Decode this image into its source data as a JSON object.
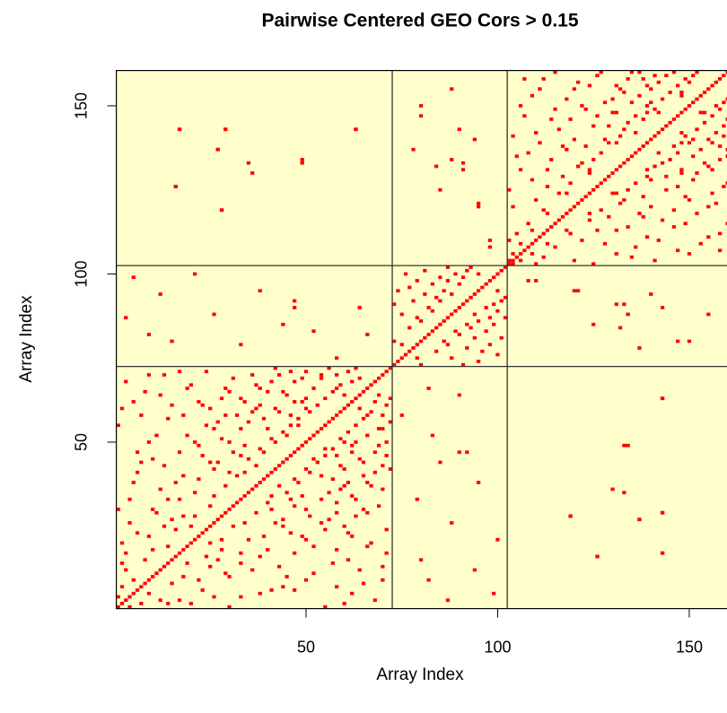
{
  "chart_data": {
    "type": "heatmap",
    "title": "Pairwise Centered GEO Cors > 0.15",
    "xlabel": "Array Index",
    "ylabel": "Array Index",
    "xlim": [
      0.5,
      160.5
    ],
    "ylim": [
      0.5,
      160.5
    ],
    "xticks": [
      50,
      100,
      150
    ],
    "yticks": [
      50,
      100,
      150
    ],
    "background": "#ffffcc",
    "color": "#ff0000",
    "symmetric": true,
    "diagonal": true,
    "blocks": [
      72.5,
      102.5
    ],
    "points": [
      [
        3,
        12
      ],
      [
        5,
        9
      ],
      [
        2,
        20
      ],
      [
        4,
        33
      ],
      [
        6,
        41
      ],
      [
        1,
        55
      ],
      [
        2,
        60
      ],
      [
        3,
        68
      ],
      [
        8,
        15
      ],
      [
        9,
        22
      ],
      [
        10,
        30
      ],
      [
        7,
        44
      ],
      [
        11,
        52
      ],
      [
        12,
        64
      ],
      [
        13,
        70
      ],
      [
        14,
        19
      ],
      [
        15,
        27
      ],
      [
        16,
        38
      ],
      [
        17,
        47
      ],
      [
        18,
        58
      ],
      [
        19,
        66
      ],
      [
        20,
        25
      ],
      [
        21,
        35
      ],
      [
        22,
        49
      ],
      [
        23,
        61
      ],
      [
        24,
        71
      ],
      [
        25,
        31
      ],
      [
        26,
        42
      ],
      [
        27,
        56
      ],
      [
        28,
        63
      ],
      [
        29,
        37
      ],
      [
        30,
        50
      ],
      [
        31,
        69
      ],
      [
        32,
        40
      ],
      [
        33,
        54
      ],
      [
        34,
        62
      ],
      [
        35,
        45
      ],
      [
        36,
        59
      ],
      [
        37,
        67
      ],
      [
        38,
        48
      ],
      [
        39,
        57
      ],
      [
        40,
        65
      ],
      [
        41,
        51
      ],
      [
        42,
        60
      ],
      [
        43,
        70
      ],
      [
        44,
        53
      ],
      [
        45,
        64
      ],
      [
        46,
        58
      ],
      [
        47,
        68
      ],
      [
        48,
        55
      ],
      [
        49,
        62
      ],
      [
        50,
        71
      ],
      [
        51,
        59
      ],
      [
        52,
        66
      ],
      [
        53,
        61
      ],
      [
        54,
        69
      ],
      [
        55,
        63
      ],
      [
        56,
        72
      ],
      [
        57,
        65
      ],
      [
        58,
        70
      ],
      [
        59,
        67
      ],
      [
        60,
        64
      ],
      [
        61,
        71
      ],
      [
        62,
        68
      ],
      [
        63,
        72
      ],
      [
        64,
        69
      ],
      [
        1,
        4
      ],
      [
        2,
        7
      ],
      [
        3,
        17
      ],
      [
        4,
        26
      ],
      [
        5,
        38
      ],
      [
        6,
        47
      ],
      [
        7,
        58
      ],
      [
        8,
        65
      ],
      [
        9,
        70
      ],
      [
        10,
        18
      ],
      [
        11,
        29
      ],
      [
        12,
        36
      ],
      [
        13,
        43
      ],
      [
        14,
        57
      ],
      [
        15,
        61
      ],
      [
        16,
        24
      ],
      [
        17,
        33
      ],
      [
        18,
        40
      ],
      [
        19,
        52
      ],
      [
        20,
        67
      ],
      [
        21,
        28
      ],
      [
        22,
        39
      ],
      [
        23,
        46
      ],
      [
        24,
        55
      ],
      [
        25,
        60
      ],
      [
        26,
        34
      ],
      [
        27,
        44
      ],
      [
        28,
        51
      ],
      [
        29,
        66
      ],
      [
        30,
        41
      ],
      [
        31,
        47
      ],
      [
        32,
        58
      ],
      [
        33,
        63
      ],
      [
        34,
        49
      ],
      [
        35,
        56
      ],
      [
        36,
        70
      ],
      [
        37,
        43
      ],
      [
        38,
        61
      ],
      [
        39,
        47
      ],
      [
        40,
        54
      ],
      [
        41,
        68
      ],
      [
        42,
        50
      ],
      [
        43,
        59
      ],
      [
        44,
        65
      ],
      [
        45,
        52
      ],
      [
        46,
        71
      ],
      [
        47,
        62
      ],
      [
        48,
        57
      ],
      [
        49,
        69
      ],
      [
        50,
        60
      ],
      [
        2,
        14
      ],
      [
        6,
        23
      ],
      [
        10,
        45
      ],
      [
        14,
        33
      ],
      [
        18,
        28
      ],
      [
        22,
        62
      ],
      [
        26,
        54
      ],
      [
        30,
        65
      ],
      [
        34,
        41
      ],
      [
        38,
        66
      ],
      [
        42,
        72
      ],
      [
        46,
        55
      ],
      [
        50,
        63
      ],
      [
        54,
        70
      ],
      [
        58,
        66
      ],
      [
        1,
        30
      ],
      [
        5,
        62
      ],
      [
        9,
        50
      ],
      [
        13,
        25
      ],
      [
        17,
        71
      ],
      [
        21,
        50
      ],
      [
        25,
        44
      ],
      [
        29,
        58
      ],
      [
        33,
        46
      ],
      [
        37,
        60
      ],
      [
        73,
        80
      ],
      [
        74,
        95
      ],
      [
        75,
        88
      ],
      [
        76,
        100
      ],
      [
        77,
        84
      ],
      [
        78,
        92
      ],
      [
        79,
        98
      ],
      [
        80,
        86
      ],
      [
        81,
        101
      ],
      [
        82,
        90
      ],
      [
        83,
        97
      ],
      [
        84,
        93
      ],
      [
        85,
        99
      ],
      [
        86,
        95
      ],
      [
        87,
        102
      ],
      [
        88,
        94
      ],
      [
        89,
        100
      ],
      [
        90,
        97
      ],
      [
        91,
        99
      ],
      [
        92,
        101
      ],
      [
        73,
        91
      ],
      [
        75,
        79
      ],
      [
        77,
        96
      ],
      [
        79,
        87
      ],
      [
        81,
        94
      ],
      [
        83,
        89
      ],
      [
        85,
        92
      ],
      [
        87,
        98
      ],
      [
        93,
        102
      ],
      [
        95,
        100
      ],
      [
        103,
        110
      ],
      [
        104,
        120
      ],
      [
        105,
        135
      ],
      [
        106,
        150
      ],
      [
        107,
        158
      ],
      [
        108,
        115
      ],
      [
        109,
        128
      ],
      [
        110,
        142
      ],
      [
        111,
        155
      ],
      [
        112,
        119
      ],
      [
        113,
        131
      ],
      [
        114,
        146
      ],
      [
        115,
        160
      ],
      [
        116,
        124
      ],
      [
        117,
        138
      ],
      [
        118,
        152
      ],
      [
        119,
        127
      ],
      [
        120,
        140
      ],
      [
        121,
        157
      ],
      [
        122,
        133
      ],
      [
        123,
        149
      ],
      [
        124,
        130
      ],
      [
        125,
        144
      ],
      [
        126,
        159
      ],
      [
        127,
        136
      ],
      [
        128,
        151
      ],
      [
        129,
        139
      ],
      [
        130,
        148
      ],
      [
        131,
        156
      ],
      [
        132,
        141
      ],
      [
        133,
        154
      ],
      [
        134,
        145
      ],
      [
        135,
        160
      ],
      [
        136,
        147
      ],
      [
        137,
        153
      ],
      [
        138,
        158
      ],
      [
        139,
        150
      ],
      [
        140,
        155
      ],
      [
        141,
        149
      ],
      [
        142,
        157
      ],
      [
        143,
        152
      ],
      [
        144,
        159
      ],
      [
        145,
        154
      ],
      [
        146,
        160
      ],
      [
        147,
        156
      ],
      [
        148,
        153
      ],
      [
        149,
        158
      ],
      [
        150,
        157
      ],
      [
        151,
        159
      ],
      [
        152,
        160
      ],
      [
        103,
        125
      ],
      [
        104,
        141
      ],
      [
        105,
        112
      ],
      [
        106,
        131
      ],
      [
        107,
        147
      ],
      [
        108,
        136
      ],
      [
        109,
        153
      ],
      [
        110,
        122
      ],
      [
        111,
        139
      ],
      [
        112,
        158
      ],
      [
        113,
        126
      ],
      [
        114,
        134
      ],
      [
        115,
        149
      ],
      [
        116,
        143
      ],
      [
        117,
        129
      ],
      [
        118,
        137
      ],
      [
        119,
        146
      ],
      [
        120,
        155
      ],
      [
        121,
        132
      ],
      [
        122,
        150
      ],
      [
        123,
        138
      ],
      [
        124,
        156
      ],
      [
        125,
        134
      ],
      [
        126,
        147
      ],
      [
        127,
        160
      ],
      [
        128,
        140
      ],
      [
        129,
        144
      ],
      [
        130,
        152
      ],
      [
        131,
        148
      ],
      [
        132,
        155
      ],
      [
        133,
        143
      ],
      [
        134,
        158
      ],
      [
        135,
        151
      ],
      [
        136,
        142
      ],
      [
        137,
        160
      ],
      [
        138,
        146
      ],
      [
        139,
        156
      ],
      [
        140,
        151
      ],
      [
        141,
        159
      ],
      [
        142,
        148
      ],
      [
        103,
        104
      ],
      [
        104,
        106
      ],
      [
        106,
        109
      ],
      [
        109,
        113
      ],
      [
        113,
        118
      ],
      [
        118,
        124
      ],
      [
        124,
        131
      ],
      [
        131,
        139
      ],
      [
        139,
        148
      ],
      [
        148,
        154
      ],
      [
        17,
        143
      ],
      [
        29,
        143
      ],
      [
        27,
        137
      ],
      [
        35,
        133
      ],
      [
        49,
        134
      ],
      [
        63,
        143
      ],
      [
        16,
        126
      ],
      [
        28,
        119
      ],
      [
        80,
        150
      ],
      [
        84,
        132
      ],
      [
        88,
        134
      ],
      [
        90,
        143
      ],
      [
        91,
        131
      ],
      [
        95,
        121
      ],
      [
        98,
        110
      ],
      [
        78,
        137
      ],
      [
        3,
        87
      ],
      [
        9,
        82
      ],
      [
        12,
        94
      ],
      [
        26,
        88
      ],
      [
        33,
        79
      ],
      [
        47,
        92
      ],
      [
        52,
        83
      ],
      [
        64,
        90
      ],
      [
        5,
        99
      ],
      [
        75,
        58
      ],
      [
        82,
        66
      ],
      [
        85,
        44
      ],
      [
        90,
        47
      ],
      [
        95,
        38
      ],
      [
        100,
        21
      ],
      [
        80,
        15
      ],
      [
        108,
        98
      ],
      [
        120,
        95
      ],
      [
        125,
        85
      ],
      [
        133,
        91
      ],
      [
        140,
        94
      ],
      [
        147,
        80
      ],
      [
        155,
        88
      ],
      [
        119,
        28
      ],
      [
        133,
        49
      ],
      [
        143,
        63
      ],
      [
        130,
        36
      ],
      [
        137,
        27
      ],
      [
        143,
        17
      ],
      [
        126,
        16
      ],
      [
        143,
        29
      ]
    ]
  }
}
